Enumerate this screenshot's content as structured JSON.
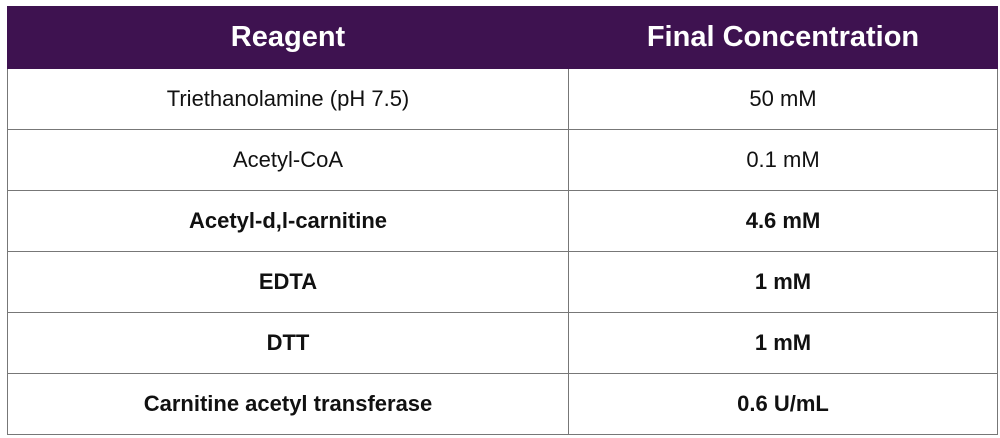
{
  "table": {
    "header": [
      "Reagent",
      "Final Concentration"
    ],
    "rows": [
      [
        "Triethanolamine (pH 7.5)",
        "50 mM"
      ],
      [
        "Acetyl-CoA",
        "0.1 mM"
      ],
      [
        "Acetyl-d,l-carnitine",
        "4.6 mM"
      ],
      [
        "EDTA",
        "1 mM"
      ],
      [
        "DTT",
        "1 mM"
      ],
      [
        "Carnitine acetyl transferase",
        "0.6 U/mL"
      ]
    ]
  }
}
